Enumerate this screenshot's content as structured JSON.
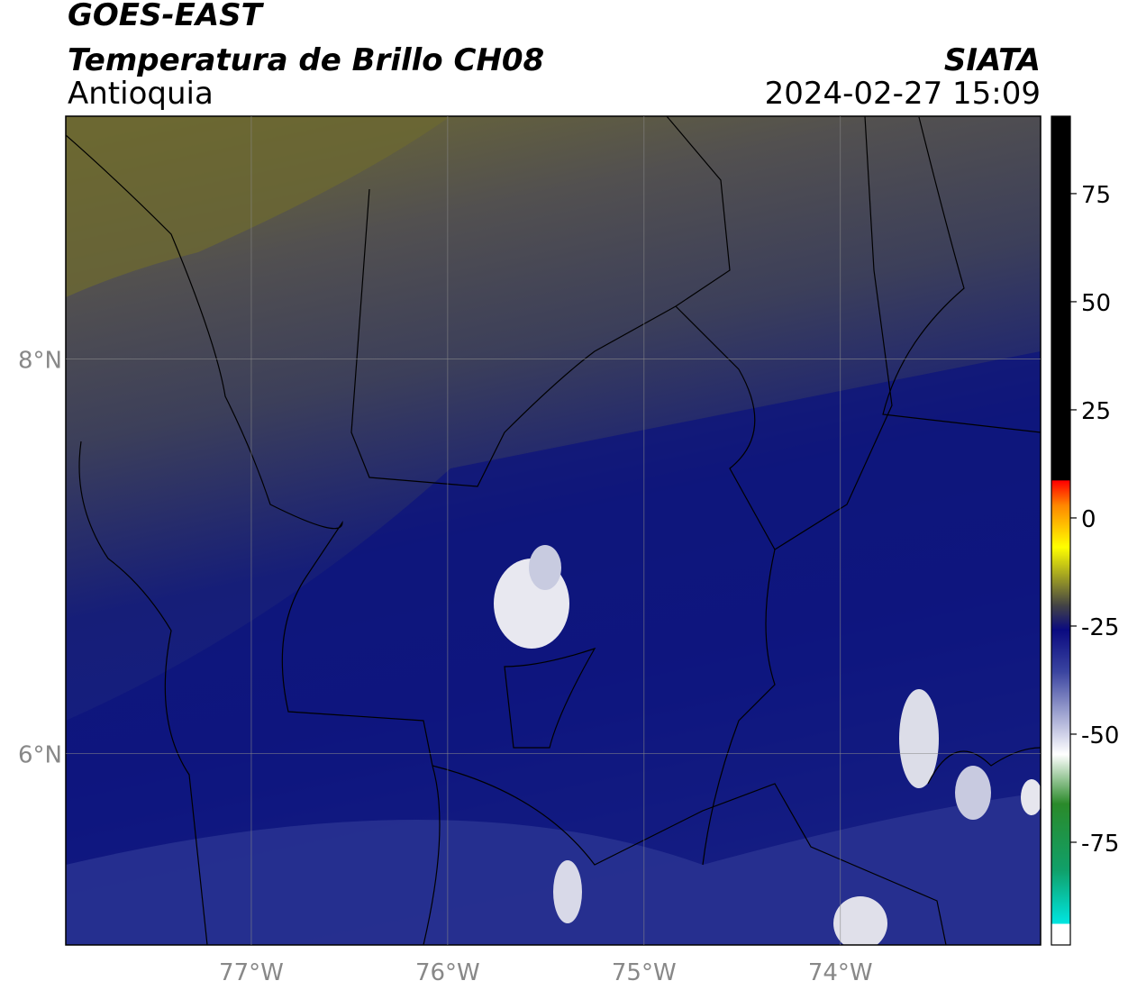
{
  "header": {
    "title": "GOES-EAST",
    "subtitle": "Temperatura de Brillo CH08",
    "region": "Antioquia",
    "source": "SIATA",
    "datetime": "2024-02-27 15:09"
  },
  "map": {
    "xlim": [
      -77.945,
      -72.98
    ],
    "ylim": [
      5.03,
      9.23
    ],
    "xticks": [
      {
        "value": -77,
        "label": "77°W"
      },
      {
        "value": -76,
        "label": "76°W"
      },
      {
        "value": -75,
        "label": "75°W"
      },
      {
        "value": -74,
        "label": "74°W"
      }
    ],
    "yticks": [
      {
        "value": 8,
        "label": "8°N"
      },
      {
        "value": 6,
        "label": "6°N"
      }
    ],
    "grid": true
  },
  "colorbar": {
    "lim": [
      -98.75,
      92.9
    ],
    "ticks": [
      75,
      50,
      25,
      0,
      -25,
      -50,
      -75
    ]
  }
}
